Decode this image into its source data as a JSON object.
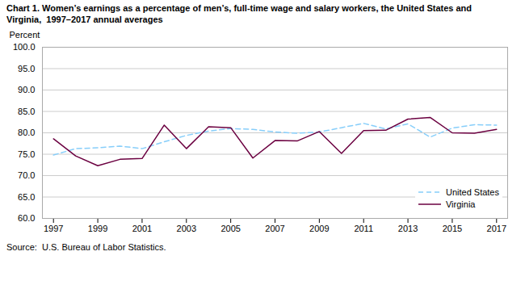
{
  "chart_data": {
    "type": "line",
    "title": "Chart 1. Women’s earnings as a percentage of men’s, full-time wage and salary workers, the United States and\nVirginia,  1997–2017 annual averages",
    "y_label": "Percent",
    "source": "Source:  U.S. Bureau of Labor Statistics.",
    "x": [
      1997,
      1998,
      1999,
      2000,
      2001,
      2002,
      2003,
      2004,
      2005,
      2006,
      2007,
      2008,
      2009,
      2010,
      2011,
      2012,
      2013,
      2014,
      2015,
      2016,
      2017
    ],
    "series": [
      {
        "name": "United States",
        "color": "#87CEFA",
        "line_style": "dashed",
        "values": [
          74.8,
          76.3,
          76.5,
          76.9,
          76.3,
          77.9,
          79.4,
          80.4,
          81.0,
          80.8,
          80.2,
          79.9,
          80.2,
          81.2,
          82.2,
          80.9,
          82.1,
          79.0,
          81.1,
          81.9,
          81.8
        ]
      },
      {
        "name": "Virginia",
        "color": "#6B0040",
        "line_style": "solid",
        "values": [
          78.6,
          74.6,
          72.3,
          73.8,
          74.0,
          81.8,
          76.3,
          81.4,
          81.2,
          74.1,
          78.2,
          78.1,
          80.3,
          75.2,
          80.5,
          80.6,
          83.2,
          83.6,
          80.0,
          79.9,
          80.8
        ]
      }
    ],
    "xlim": [
      1996.5,
      2017.5
    ],
    "xticks": [
      1997,
      1999,
      2001,
      2003,
      2005,
      2007,
      2009,
      2011,
      2013,
      2015,
      2017
    ],
    "ylim": [
      60.0,
      100.0
    ],
    "yticks": [
      {
        "value": 60,
        "label": "60.0"
      },
      {
        "value": 65,
        "label": "65.0"
      },
      {
        "value": 70,
        "label": "70.0"
      },
      {
        "value": 75,
        "label": "75.0"
      },
      {
        "value": 80,
        "label": "80.0"
      },
      {
        "value": 85,
        "label": "85.0"
      },
      {
        "value": 90,
        "label": "90.0"
      },
      {
        "value": 95,
        "label": "95.0"
      },
      {
        "value": 100,
        "label": "100.0"
      }
    ],
    "grid": true,
    "legend": "lower right"
  }
}
